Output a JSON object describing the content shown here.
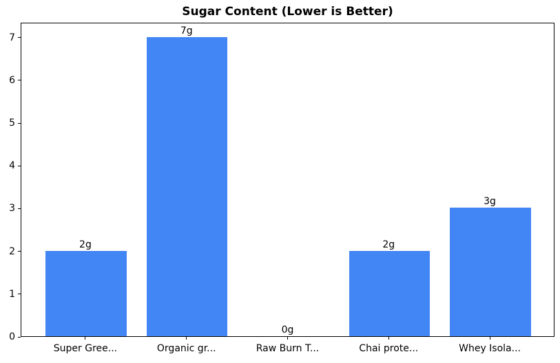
{
  "chart_data": {
    "type": "bar",
    "title": "Sugar Content (Lower is Better)",
    "categories": [
      "Super Gree...",
      "Organic gr...",
      "Raw Burn T...",
      "Chai prote...",
      "Whey Isola..."
    ],
    "values": [
      2,
      7,
      0,
      2,
      3
    ],
    "value_labels": [
      "2g",
      "7g",
      "0g",
      "2g",
      "3g"
    ],
    "xlabel": "",
    "ylabel": "",
    "yticks": [
      0,
      1,
      2,
      3,
      4,
      5,
      6,
      7
    ],
    "ylim": [
      0,
      7.35
    ],
    "grid": false,
    "legend_position": "none",
    "bar_color": "#4285f4",
    "axis_color": "#000000",
    "background_color": "#ffffff"
  }
}
